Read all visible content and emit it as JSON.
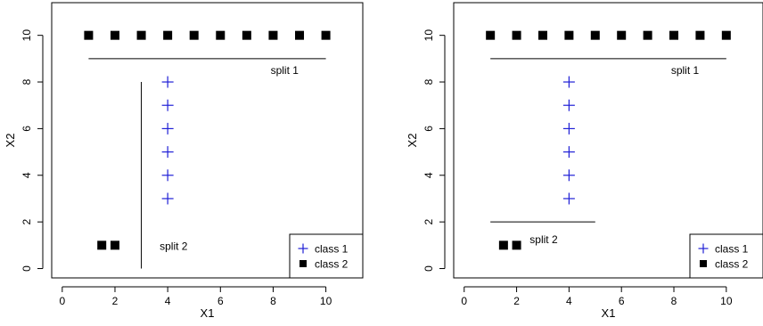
{
  "chart_data": [
    {
      "type": "scatter",
      "title": "",
      "xlabel": "X1",
      "ylabel": "X2",
      "xlim": [
        -0.4,
        11.4
      ],
      "ylim": [
        -0.4,
        11.4
      ],
      "x_ticks": [
        0,
        2,
        4,
        6,
        8,
        10
      ],
      "y_ticks": [
        0,
        2,
        4,
        6,
        8,
        10
      ],
      "grid": false,
      "legend_position": "bottom-right",
      "series": [
        {
          "name": "class 1",
          "marker": "plus",
          "color": "#1f1fd6",
          "points": [
            [
              4,
              3
            ],
            [
              4,
              4
            ],
            [
              4,
              5
            ],
            [
              4,
              6
            ],
            [
              4,
              7
            ],
            [
              4,
              8
            ]
          ]
        },
        {
          "name": "class 2",
          "marker": "filled-square",
          "color": "#000000",
          "points": [
            [
              1,
              10
            ],
            [
              2,
              10
            ],
            [
              3,
              10
            ],
            [
              4,
              10
            ],
            [
              5,
              10
            ],
            [
              6,
              10
            ],
            [
              7,
              10
            ],
            [
              8,
              10
            ],
            [
              9,
              10
            ],
            [
              10,
              10
            ],
            [
              1.5,
              1
            ],
            [
              2,
              1
            ]
          ]
        }
      ],
      "splits": [
        {
          "label": "split 1",
          "orientation": "horizontal",
          "at": 9,
          "from": 1,
          "to": 10
        },
        {
          "label": "split 2",
          "orientation": "vertical",
          "at": 3,
          "from": 0,
          "to": 8
        }
      ]
    },
    {
      "type": "scatter",
      "title": "",
      "xlabel": "X1",
      "ylabel": "X2",
      "xlim": [
        -0.4,
        11.4
      ],
      "ylim": [
        -0.4,
        11.4
      ],
      "x_ticks": [
        0,
        2,
        4,
        6,
        8,
        10
      ],
      "y_ticks": [
        0,
        2,
        4,
        6,
        8,
        10
      ],
      "grid": false,
      "legend_position": "bottom-right",
      "series": [
        {
          "name": "class 1",
          "marker": "plus",
          "color": "#1f1fd6",
          "points": [
            [
              4,
              3
            ],
            [
              4,
              4
            ],
            [
              4,
              5
            ],
            [
              4,
              6
            ],
            [
              4,
              7
            ],
            [
              4,
              8
            ]
          ]
        },
        {
          "name": "class 2",
          "marker": "filled-square",
          "color": "#000000",
          "points": [
            [
              1,
              10
            ],
            [
              2,
              10
            ],
            [
              3,
              10
            ],
            [
              4,
              10
            ],
            [
              5,
              10
            ],
            [
              6,
              10
            ],
            [
              7,
              10
            ],
            [
              8,
              10
            ],
            [
              9,
              10
            ],
            [
              10,
              10
            ],
            [
              1.5,
              1
            ],
            [
              2,
              1
            ]
          ]
        }
      ],
      "splits": [
        {
          "label": "split 1",
          "orientation": "horizontal",
          "at": 9,
          "from": 1,
          "to": 10
        },
        {
          "label": "split 2",
          "orientation": "horizontal",
          "at": 2,
          "from": 1,
          "to": 5
        }
      ]
    }
  ]
}
